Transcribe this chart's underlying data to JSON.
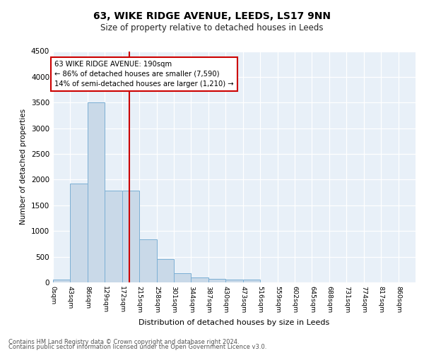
{
  "title1": "63, WIKE RIDGE AVENUE, LEEDS, LS17 9NN",
  "title2": "Size of property relative to detached houses in Leeds",
  "xlabel": "Distribution of detached houses by size in Leeds",
  "ylabel": "Number of detached properties",
  "bar_labels": [
    "0sqm",
    "43sqm",
    "86sqm",
    "129sqm",
    "172sqm",
    "215sqm",
    "258sqm",
    "301sqm",
    "344sqm",
    "387sqm",
    "430sqm",
    "473sqm",
    "516sqm",
    "559sqm",
    "602sqm",
    "645sqm",
    "688sqm",
    "731sqm",
    "774sqm",
    "817sqm",
    "860sqm"
  ],
  "bar_values": [
    50,
    1920,
    3500,
    1790,
    1790,
    840,
    450,
    175,
    100,
    65,
    50,
    50,
    0,
    0,
    0,
    0,
    0,
    0,
    0,
    0,
    0
  ],
  "bar_color": "#c9d9e8",
  "bar_edgecolor": "#7bafd4",
  "bg_color": "#e8f0f8",
  "gridcolor": "#ffffff",
  "property_line_color": "#cc0000",
  "annotation_title": "63 WIKE RIDGE AVENUE: 190sqm",
  "annotation_line1": "← 86% of detached houses are smaller (7,590)",
  "annotation_line2": "14% of semi-detached houses are larger (1,210) →",
  "annotation_box_color": "#ffffff",
  "annotation_box_edgecolor": "#cc0000",
  "ylim": [
    0,
    4500
  ],
  "bin_width": 43,
  "property_sqm": 190,
  "footnote1": "Contains HM Land Registry data © Crown copyright and database right 2024.",
  "footnote2": "Contains public sector information licensed under the Open Government Licence v3.0."
}
